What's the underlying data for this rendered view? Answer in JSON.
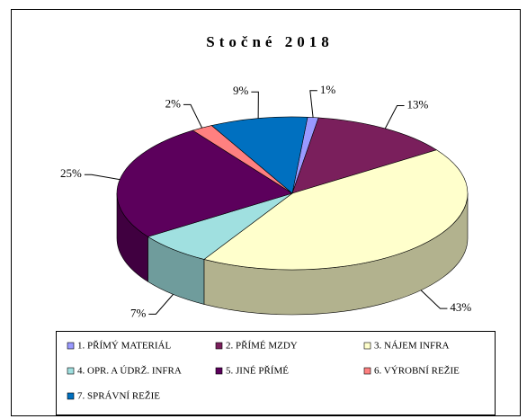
{
  "chart_data": {
    "type": "pie3d",
    "title": "Stočné 2018",
    "categories": [
      "1. PŘÍMÝ MATERIÁL",
      "2. PŘÍMÉ MZDY",
      "3. NÁJEM INFRA",
      "4. OPR. A ÚDRŽ. INFRA",
      "5. JINÉ PŘÍMÉ",
      "6. VÝROBNÍ REŽIE",
      "7. SPRÁVNÍ REŽIE"
    ],
    "values": [
      1,
      13,
      43,
      7,
      25,
      2,
      9
    ],
    "value_labels": [
      "1%",
      "13%",
      "43%",
      "7%",
      "25%",
      "2%",
      "9%"
    ],
    "colors": [
      "#9999ff",
      "#7a1f5c",
      "#ffffcc",
      "#a0e0e0",
      "#5c005c",
      "#ff8080",
      "#0070c0"
    ],
    "legend": "bottom"
  }
}
